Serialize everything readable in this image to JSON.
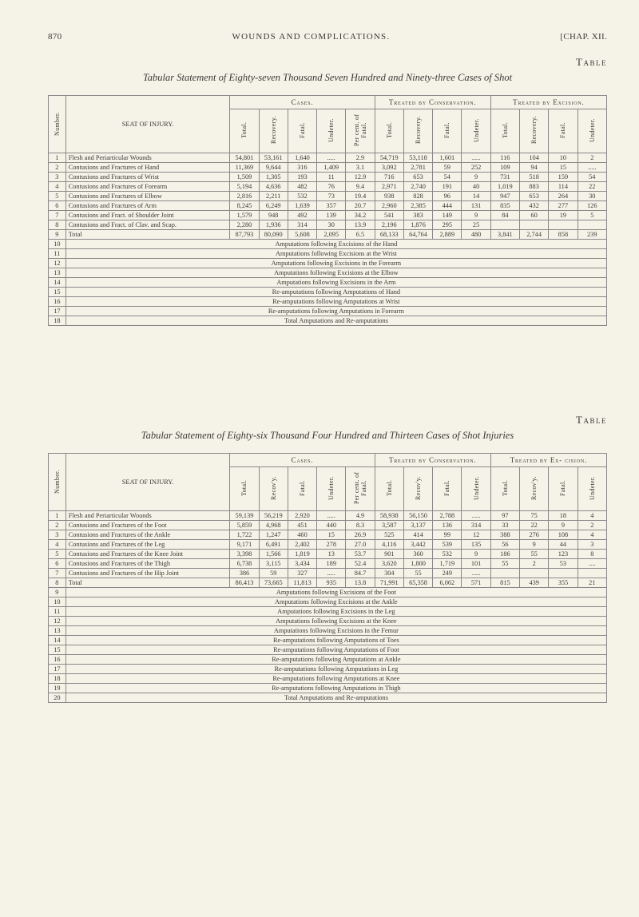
{
  "page_number": "870",
  "running_header_center": "WOUNDS AND COMPLICATIONS.",
  "running_header_right": "[CHAP. XII.",
  "block1": {
    "right_label": "Table",
    "caption": "Tabular Statement of Eighty-seven Thousand Seven Hundred and Ninety-three Cases of Shot",
    "col_number": "Number.",
    "col_seat": "SEAT OF INJURY.",
    "group_cases": "Cases.",
    "group_treated_c": "Treated by Conservation.",
    "group_treated_e": "Treated by Excision.",
    "col_total": "Total.",
    "col_recovery": "Recovery.",
    "col_fatal": "Fatal.",
    "col_undeter": "Undeter.",
    "col_percent": "Per cent. of Fatal.",
    "rows": [
      {
        "n": "1",
        "seat": "Flesh and Periarticular Wounds",
        "c": [
          "54,801",
          "53,161",
          "1,640",
          ".....",
          "2.9"
        ],
        "t": [
          "54,719",
          "53,118",
          "1,601",
          "....."
        ],
        "e": [
          "116",
          "104",
          "10",
          "2"
        ]
      },
      {
        "n": "2",
        "seat": "Contusions and Fractures of Hand",
        "c": [
          "11,369",
          "9,644",
          "316",
          "1,409",
          "3.1"
        ],
        "t": [
          "3,092",
          "2,781",
          "59",
          "252"
        ],
        "e": [
          "109",
          "94",
          "15",
          "....."
        ]
      },
      {
        "n": "3",
        "seat": "Contusions and Fractures of Wrist",
        "c": [
          "1,509",
          "1,305",
          "193",
          "11",
          "12.9"
        ],
        "t": [
          "716",
          "653",
          "54",
          "9"
        ],
        "e": [
          "731",
          "518",
          "159",
          "54"
        ]
      },
      {
        "n": "4",
        "seat": "Contusions and Fractures of Forearm",
        "c": [
          "5,194",
          "4,636",
          "482",
          "76",
          "9.4"
        ],
        "t": [
          "2,971",
          "2,740",
          "191",
          "40"
        ],
        "e": [
          "1,019",
          "883",
          "114",
          "22"
        ]
      },
      {
        "n": "5",
        "seat": "Contusions and Fractures of Elbow",
        "c": [
          "2,816",
          "2,211",
          "532",
          "73",
          "19.4"
        ],
        "t": [
          "938",
          "828",
          "96",
          "14"
        ],
        "e": [
          "947",
          "653",
          "264",
          "30"
        ]
      },
      {
        "n": "6",
        "seat": "Contusions and Fractures of Arm",
        "c": [
          "8,245",
          "6,249",
          "1,639",
          "357",
          "20.7"
        ],
        "t": [
          "2,960",
          "2,385",
          "444",
          "131"
        ],
        "e": [
          "835",
          "432",
          "277",
          "126"
        ]
      },
      {
        "n": "7",
        "seat": "Contusions and Fract. of Shoulder Joint",
        "c": [
          "1,579",
          "948",
          "492",
          "139",
          "34.2"
        ],
        "t": [
          "541",
          "383",
          "149",
          "9"
        ],
        "e": [
          "84",
          "60",
          "19",
          "5"
        ]
      },
      {
        "n": "8",
        "seat": "Contusions and Fract. of Clav. and Scap.",
        "c": [
          "2,280",
          "1,936",
          "314",
          "30",
          "13.9"
        ],
        "t": [
          "2,196",
          "1,876",
          "295",
          "25"
        ],
        "e": [
          "",
          "",
          "",
          ""
        ]
      }
    ],
    "total_row": {
      "n": "9",
      "seat": "Total",
      "c": [
        "87,793",
        "80,090",
        "5,608",
        "2,095",
        "6.5"
      ],
      "t": [
        "68,133",
        "64,764",
        "2,889",
        "480"
      ],
      "e": [
        "3,841",
        "2,744",
        "858",
        "239"
      ]
    },
    "notes": [
      {
        "n": "10",
        "text": "Amputations following Excisions of the Hand"
      },
      {
        "n": "11",
        "text": "Amputations following Excisions at the Wrist"
      },
      {
        "n": "12",
        "text": "Amputations following Excisions in the Forearm"
      },
      {
        "n": "13",
        "text": "Amputations following Excisions at the Elbow"
      },
      {
        "n": "14",
        "text": "Amputations following Excisions in the Arm"
      },
      {
        "n": "15",
        "text": "Re-amputations following Amputations of Hand"
      },
      {
        "n": "16",
        "text": "Re-amputations following Amputations at Wrist"
      },
      {
        "n": "17",
        "text": "Re-amputations following Amputations in Forearm"
      }
    ],
    "footer": {
      "n": "18",
      "text": "Total Amputations and Re-amputations"
    }
  },
  "block2": {
    "right_label": "Table",
    "caption": "Tabular Statement of Eighty-six Thousand Four Hundred and Thirteen Cases of Shot Injuries",
    "col_number": "Number.",
    "col_seat": "SEAT OF INJURY.",
    "group_cases": "Cases.",
    "group_treated_c": "Treated by Conservation.",
    "group_treated_e": "Treated by Ex-\ncision.",
    "col_total": "Total.",
    "col_recov": "Recov'y.",
    "col_fatal": "Fatal.",
    "col_undeter": "Undeter.",
    "col_percent": "Per cent. of Fatal.",
    "rows": [
      {
        "n": "1",
        "seat": "Flesh and Periarticular Wounds",
        "c": [
          "59,139",
          "56,219",
          "2,920",
          ".....",
          "4.9"
        ],
        "t": [
          "58,938",
          "56,150",
          "2,788",
          "....."
        ],
        "e": [
          "97",
          "75",
          "18",
          "4"
        ]
      },
      {
        "n": "2",
        "seat": "Contusions and Fractures of the Foot",
        "c": [
          "5,859",
          "4,968",
          "451",
          "440",
          "8.3"
        ],
        "t": [
          "3,587",
          "3,137",
          "136",
          "314"
        ],
        "e": [
          "33",
          "22",
          "9",
          "2"
        ]
      },
      {
        "n": "3",
        "seat": "Contusions and Fractures of the Ankle",
        "c": [
          "1,722",
          "1,247",
          "460",
          "15",
          "26.9"
        ],
        "t": [
          "525",
          "414",
          "99",
          "12"
        ],
        "e": [
          "388",
          "276",
          "108",
          "4"
        ]
      },
      {
        "n": "4",
        "seat": "Contusions and Fractures of the Leg",
        "c": [
          "9,171",
          "6,491",
          "2,402",
          "278",
          "27.0"
        ],
        "t": [
          "4,116",
          "3,442",
          "539",
          "135"
        ],
        "e": [
          "56",
          "9",
          "44",
          "3"
        ]
      },
      {
        "n": "5",
        "seat": "Contusions and Fractures of the Knee Joint",
        "c": [
          "3,398",
          "1,566",
          "1,819",
          "13",
          "53.7"
        ],
        "t": [
          "901",
          "360",
          "532",
          "9"
        ],
        "e": [
          "186",
          "55",
          "123",
          "8"
        ]
      },
      {
        "n": "6",
        "seat": "Contusions and Fractures of the Thigh",
        "c": [
          "6,738",
          "3,115",
          "3,434",
          "189",
          "52.4"
        ],
        "t": [
          "3,620",
          "1,800",
          "1,719",
          "101"
        ],
        "e": [
          "55",
          "2",
          "53",
          "...."
        ]
      },
      {
        "n": "7",
        "seat": "Contusions and Fractures of the Hip Joint",
        "c": [
          "386",
          "59",
          "327",
          ".....",
          "84.7"
        ],
        "t": [
          "304",
          "55",
          "249",
          "....."
        ],
        "e": [
          "",
          "",
          "",
          ""
        ]
      }
    ],
    "total_row": {
      "n": "8",
      "seat": "Total",
      "c": [
        "86,413",
        "73,665",
        "11,813",
        "935",
        "13.8"
      ],
      "t": [
        "71,991",
        "65,358",
        "6,062",
        "571"
      ],
      "e": [
        "815",
        "439",
        "355",
        "21"
      ]
    },
    "notes": [
      {
        "n": "9",
        "text": "Amputations following Excisions of the Foot"
      },
      {
        "n": "10",
        "text": "Amputations following Excisions at the Ankle"
      },
      {
        "n": "11",
        "text": "Amputations following Excisions in the Leg"
      },
      {
        "n": "12",
        "text": "Amputations following Excisions at the Knee"
      },
      {
        "n": "13",
        "text": "Amputations following Excisions in the Femur"
      },
      {
        "n": "14",
        "text": "Re-amputations following Amputations of Toes"
      },
      {
        "n": "15",
        "text": "Re-amputations following Amputations of Foot"
      },
      {
        "n": "16",
        "text": "Re-amputations following Amputations at Ankle"
      },
      {
        "n": "17",
        "text": "Re-amputations following Amputations in Leg"
      },
      {
        "n": "18",
        "text": "Re-amputations following Amputations at Knee"
      },
      {
        "n": "19",
        "text": "Re-amputations following Amputations in Thigh"
      }
    ],
    "footer": {
      "n": "20",
      "text": "Total Amputations and Re-amputations"
    }
  }
}
